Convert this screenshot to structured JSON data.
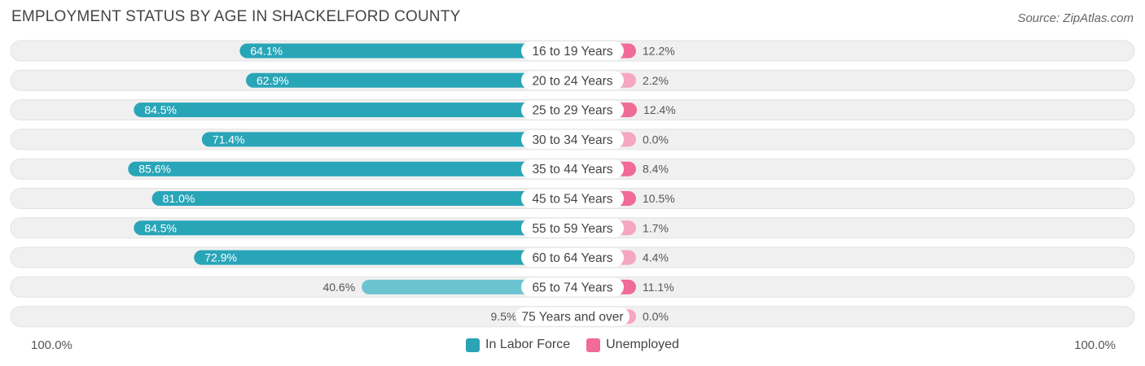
{
  "title": "EMPLOYMENT STATUS BY AGE IN SHACKELFORD COUNTY",
  "source": "Source: ZipAtlas.com",
  "colors": {
    "labor_dark": "#29a5b8",
    "labor_light": "#6cc4d1",
    "unemp_dark": "#f06b96",
    "unemp_light": "#f5a6c0",
    "row_bg": "#f0f0f0"
  },
  "axis": {
    "left_label": "100.0%",
    "right_label": "100.0%"
  },
  "legend": [
    {
      "label": "In Labor Force",
      "color": "#2ba3b5"
    },
    {
      "label": "Unemployed",
      "color": "#f06b96"
    }
  ],
  "chart_data": {
    "type": "bar",
    "orientation": "horizontal-diverging",
    "title": "EMPLOYMENT STATUS BY AGE IN SHACKELFORD COUNTY",
    "categories": [
      "16 to 19 Years",
      "20 to 24 Years",
      "25 to 29 Years",
      "30 to 34 Years",
      "35 to 44 Years",
      "45 to 54 Years",
      "55 to 59 Years",
      "60 to 64 Years",
      "65 to 74 Years",
      "75 Years and over"
    ],
    "series": [
      {
        "name": "In Labor Force",
        "values": [
          64.1,
          62.9,
          84.5,
          71.4,
          85.6,
          81.0,
          84.5,
          72.9,
          40.6,
          9.5
        ],
        "labels": [
          "64.1%",
          "62.9%",
          "84.5%",
          "71.4%",
          "85.6%",
          "81.0%",
          "84.5%",
          "72.9%",
          "40.6%",
          "9.5%"
        ]
      },
      {
        "name": "Unemployed",
        "values": [
          12.2,
          2.2,
          12.4,
          0.0,
          8.4,
          10.5,
          1.7,
          4.4,
          11.1,
          0.0
        ],
        "labels": [
          "12.2%",
          "2.2%",
          "12.4%",
          "0.0%",
          "8.4%",
          "10.5%",
          "1.7%",
          "4.4%",
          "11.1%",
          "0.0%"
        ]
      }
    ],
    "xlim": [
      -100,
      100
    ],
    "legend_position": "bottom-center"
  }
}
